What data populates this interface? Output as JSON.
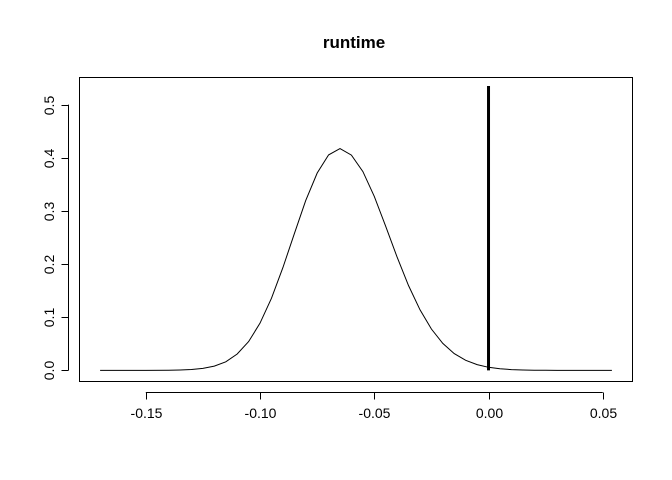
{
  "chart_data": {
    "type": "line",
    "title": "runtime",
    "xlabel": "",
    "ylabel": "",
    "xlim": [
      -0.1788,
      0.0628
    ],
    "ylim": [
      -0.02,
      0.55
    ],
    "x_ticks": [
      -0.15,
      -0.1,
      -0.05,
      0.0,
      0.05
    ],
    "x_tick_labels": [
      "-0.15",
      "-0.10",
      "-0.05",
      "0.00",
      "0.05"
    ],
    "y_ticks": [
      0.0,
      0.1,
      0.2,
      0.3,
      0.4,
      0.5
    ],
    "y_tick_labels": [
      "0.0",
      "0.1",
      "0.2",
      "0.3",
      "0.4",
      "0.5"
    ],
    "grid": false,
    "series": [
      {
        "style": "thin-line",
        "x": [
          -0.17,
          -0.16,
          -0.15,
          -0.14,
          -0.135,
          -0.13,
          -0.125,
          -0.12,
          -0.115,
          -0.11,
          -0.105,
          -0.1,
          -0.095,
          -0.09,
          -0.085,
          -0.08,
          -0.075,
          -0.07,
          -0.065,
          -0.06,
          -0.055,
          -0.05,
          -0.045,
          -0.04,
          -0.035,
          -0.03,
          -0.025,
          -0.02,
          -0.015,
          -0.01,
          -0.005,
          0.0,
          0.005,
          0.01,
          0.015,
          0.02,
          0.025,
          0.03,
          0.04,
          0.054
        ],
        "y": [
          0.0,
          0.0,
          0.0,
          0.0002,
          0.0006,
          0.0016,
          0.0037,
          0.008,
          0.0162,
          0.0307,
          0.0541,
          0.0888,
          0.1358,
          0.1933,
          0.257,
          0.3193,
          0.3712,
          0.4053,
          0.4172,
          0.405,
          0.3739,
          0.3272,
          0.2711,
          0.2131,
          0.1596,
          0.114,
          0.0778,
          0.0507,
          0.0316,
          0.019,
          0.0108,
          0.0058,
          0.003,
          0.0015,
          0.0007,
          0.0003,
          0.0001,
          0.0,
          0.0,
          0.0
        ]
      }
    ],
    "reference_line": {
      "x": 0.0,
      "y_from": 0.0,
      "y_to": 0.535
    }
  }
}
